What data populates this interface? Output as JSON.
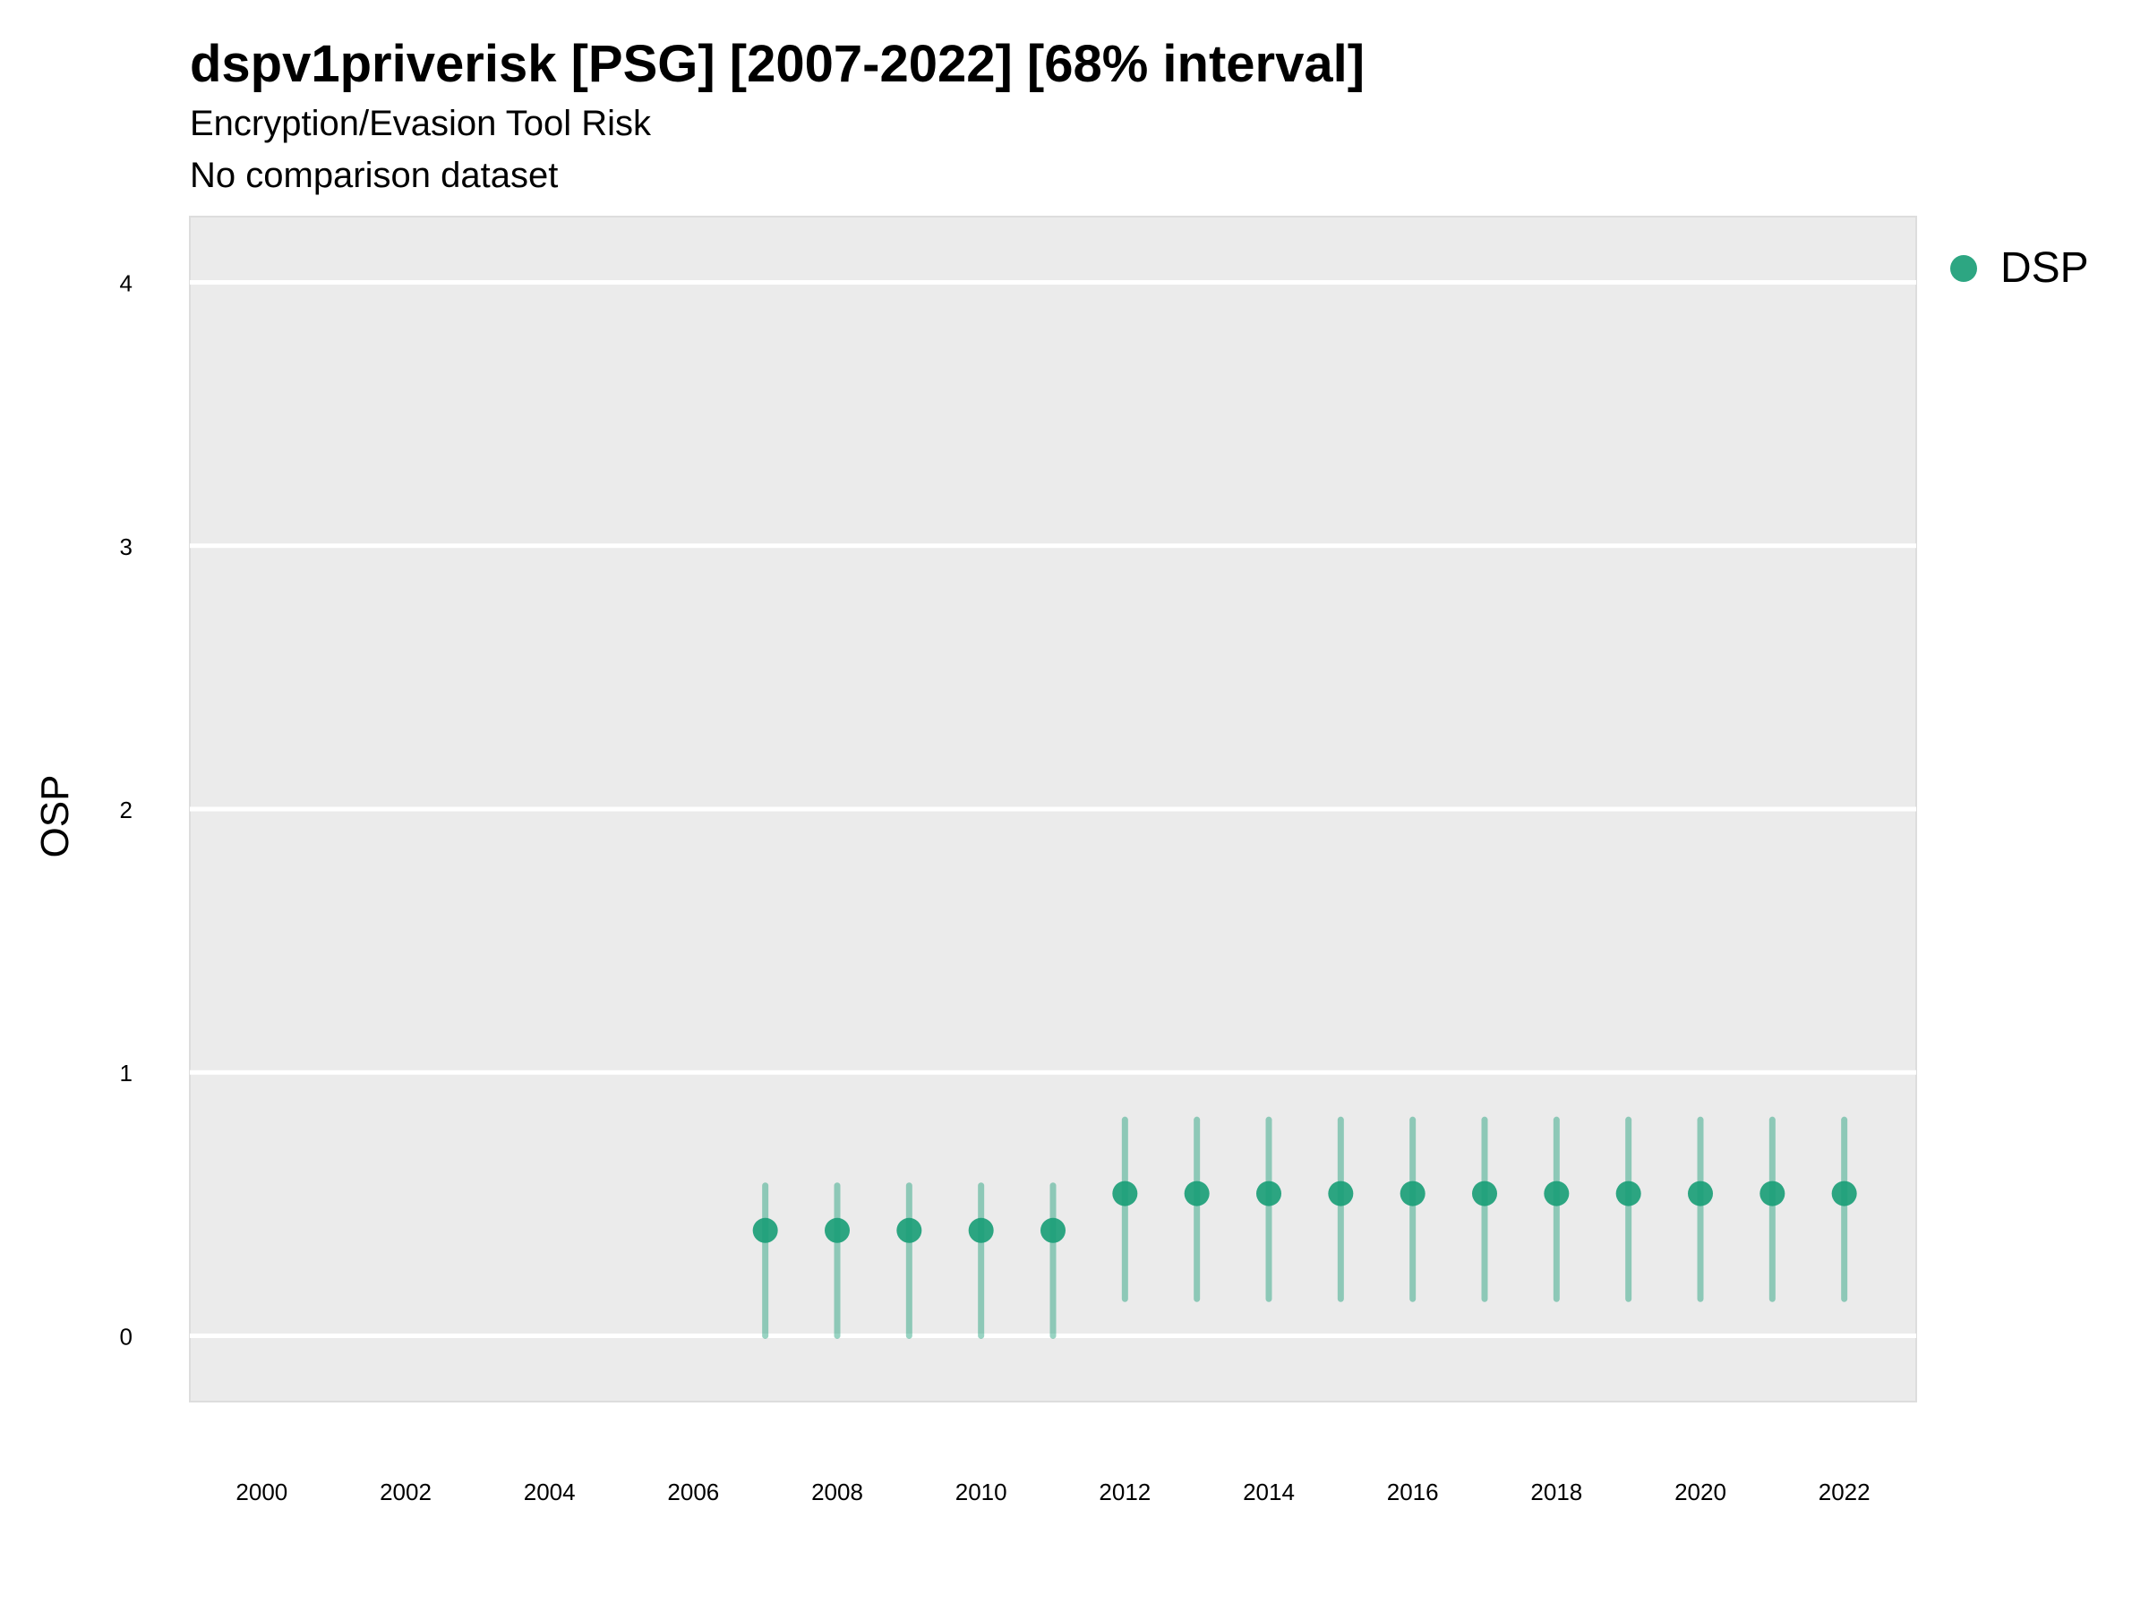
{
  "chart_data": {
    "type": "scatter",
    "title": "dspv1priverisk [PSG] [2007-2022] [68% interval]",
    "subtitle": "Encryption/Evasion Tool Risk",
    "caption": "No comparison dataset",
    "xlabel": "",
    "ylabel": "OSP",
    "xlim": [
      1999,
      2023
    ],
    "ylim": [
      -0.25,
      4.25
    ],
    "x_ticks": [
      2000,
      2002,
      2004,
      2006,
      2008,
      2010,
      2012,
      2014,
      2016,
      2018,
      2020,
      2022
    ],
    "y_ticks": [
      0,
      1,
      2,
      3,
      4
    ],
    "grid": true,
    "legend_position": "right",
    "series": [
      {
        "name": "DSP",
        "color": "#1b9e77",
        "points": [
          {
            "x": 2007,
            "y": 0.4,
            "lo": 0.0,
            "hi": 0.57
          },
          {
            "x": 2008,
            "y": 0.4,
            "lo": 0.0,
            "hi": 0.57
          },
          {
            "x": 2009,
            "y": 0.4,
            "lo": 0.0,
            "hi": 0.57
          },
          {
            "x": 2010,
            "y": 0.4,
            "lo": 0.0,
            "hi": 0.57
          },
          {
            "x": 2011,
            "y": 0.4,
            "lo": 0.0,
            "hi": 0.57
          },
          {
            "x": 2012,
            "y": 0.54,
            "lo": 0.14,
            "hi": 0.82
          },
          {
            "x": 2013,
            "y": 0.54,
            "lo": 0.14,
            "hi": 0.82
          },
          {
            "x": 2014,
            "y": 0.54,
            "lo": 0.14,
            "hi": 0.82
          },
          {
            "x": 2015,
            "y": 0.54,
            "lo": 0.14,
            "hi": 0.82
          },
          {
            "x": 2016,
            "y": 0.54,
            "lo": 0.14,
            "hi": 0.82
          },
          {
            "x": 2017,
            "y": 0.54,
            "lo": 0.14,
            "hi": 0.82
          },
          {
            "x": 2018,
            "y": 0.54,
            "lo": 0.14,
            "hi": 0.82
          },
          {
            "x": 2019,
            "y": 0.54,
            "lo": 0.14,
            "hi": 0.82
          },
          {
            "x": 2020,
            "y": 0.54,
            "lo": 0.14,
            "hi": 0.82
          },
          {
            "x": 2021,
            "y": 0.54,
            "lo": 0.14,
            "hi": 0.82
          },
          {
            "x": 2022,
            "y": 0.54,
            "lo": 0.14,
            "hi": 0.82
          }
        ]
      }
    ]
  },
  "legend": {
    "label": "DSP"
  }
}
